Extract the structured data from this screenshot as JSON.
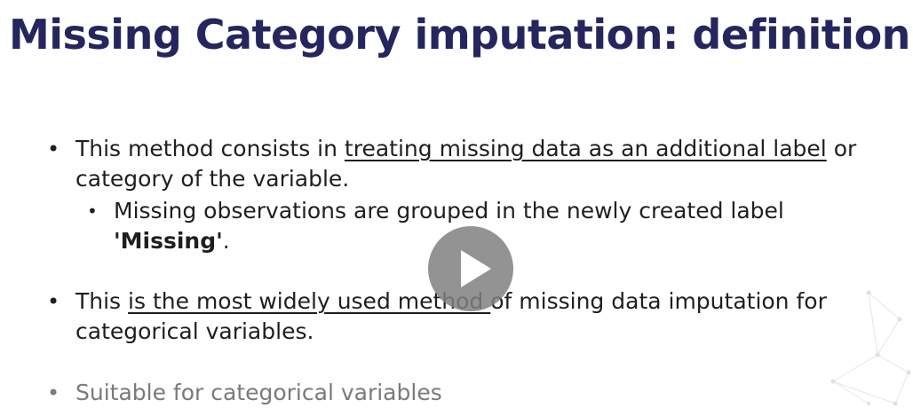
{
  "slide": {
    "title": "Missing Category imputation: definition",
    "bullet1": {
      "prefix": "This method consists in ",
      "underlined": "treating missing data as an additional label",
      "suffix": " or category of the variable."
    },
    "bullet1_sub": {
      "prefix": "Missing observations are grouped in the newly created label ",
      "bold": "'Missing'",
      "suffix": "."
    },
    "bullet2": {
      "prefix": "This ",
      "underlined": "is the most widely used method ",
      "suffix": "of missing data imputation for categorical variables."
    },
    "bullet3": {
      "text": "Suitable for categorical variables"
    }
  },
  "player": {
    "play_icon": "play-icon"
  },
  "colors": {
    "title": "#25265e",
    "text": "#1f1f1f",
    "muted": "#7a7a7a",
    "play_overlay": "#808080"
  }
}
